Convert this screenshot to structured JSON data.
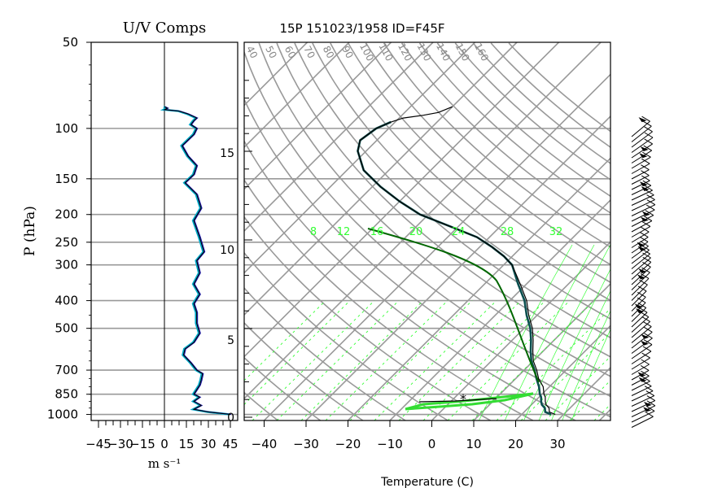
{
  "title": "15P 151023/1958 ID=F45F",
  "colors": {
    "grid": "#999999",
    "temperature": "#000000",
    "dewpoint": "#0b4f4f",
    "mixing_ratio": "#33ff33",
    "u_comp": "#00aacc",
    "v_comp": "#1a1aaa"
  },
  "chart_data": [
    {
      "type": "line",
      "title": "U/V Comps",
      "xlabel": "m s⁻¹",
      "ylabel": "P (hPa)",
      "xlim": [
        -50,
        50
      ],
      "ylim": [
        1050,
        50
      ],
      "y_scale": "log",
      "grid": true,
      "x_ticks": [
        -45,
        -30,
        -15,
        0,
        15,
        30,
        45
      ],
      "x_tick_labels": [
        "−45",
        "−30",
        "−15",
        "0",
        "15",
        "30",
        "45"
      ],
      "y_ticks": [
        50,
        100,
        150,
        200,
        250,
        300,
        400,
        500,
        700,
        850,
        1000
      ],
      "series": [
        {
          "name": "",
          "color": "#000000",
          "points": [
            [
              45,
              1000
            ],
            [
              30,
              980
            ],
            [
              20,
              960
            ],
            [
              25,
              930
            ],
            [
              20,
              900
            ],
            [
              24,
              870
            ],
            [
              20,
              850
            ],
            [
              22,
              820
            ],
            [
              24,
              790
            ],
            [
              25,
              760
            ],
            [
              26,
              720
            ],
            [
              22,
              700
            ],
            [
              18,
              660
            ],
            [
              13,
              620
            ],
            [
              14,
              590
            ],
            [
              20,
              560
            ],
            [
              24,
              520
            ],
            [
              22,
              480
            ],
            [
              22,
              440
            ],
            [
              20,
              410
            ],
            [
              24,
              380
            ],
            [
              20,
              350
            ],
            [
              24,
              320
            ],
            [
              22,
              290
            ],
            [
              27,
              270
            ],
            [
              24,
              240
            ],
            [
              20,
              210
            ],
            [
              25,
              190
            ],
            [
              22,
              170
            ],
            [
              14,
              155
            ],
            [
              20,
              145
            ],
            [
              22,
              135
            ],
            [
              16,
              125
            ],
            [
              12,
              115
            ],
            [
              20,
              105
            ],
            [
              22,
              100
            ],
            [
              18,
              97
            ],
            [
              20,
              94
            ],
            [
              22,
              92
            ],
            [
              16,
              89
            ],
            [
              10,
              87
            ],
            [
              0,
              86
            ],
            [
              2,
              85
            ],
            [
              0,
              84
            ]
          ]
        }
      ]
    },
    {
      "type": "line",
      "title": "15P 151023/1958 ID=F45F",
      "xlabel": "Temperature (C)",
      "xlim": [
        -45,
        40
      ],
      "ylim": [
        1050,
        50
      ],
      "y_scale": "log",
      "grid": true,
      "x_ticks": [
        -40,
        -30,
        -20,
        -10,
        0,
        10,
        20,
        30
      ],
      "x_tick_labels": [
        "−40",
        "−30",
        "−20",
        "−10",
        "0",
        "10",
        "20",
        "30"
      ],
      "height_axis_km": [
        0,
        5,
        10,
        15
      ],
      "mixing_ratio_labels": [
        "8",
        "12",
        "16",
        "20",
        "24",
        "28",
        "32"
      ],
      "series": [
        {
          "name": "",
          "color": "#000000",
          "points": [
            [
              28,
              1000
            ],
            [
              26,
              980
            ],
            [
              25,
              950
            ],
            [
              23.5,
              925
            ],
            [
              22.5,
              900
            ],
            [
              21.5,
              870
            ],
            [
              20.5,
              850
            ],
            [
              18.5,
              800
            ],
            [
              15.5,
              750
            ],
            [
              13,
              700
            ],
            [
              10,
              650
            ],
            [
              7.5,
              600
            ],
            [
              5,
              550
            ],
            [
              2,
              500
            ],
            [
              -2,
              450
            ],
            [
              -6,
              400
            ],
            [
              -11.5,
              350
            ],
            [
              -18,
              300
            ],
            [
              -22,
              280
            ],
            [
              -27,
              260
            ],
            [
              -33,
              240
            ],
            [
              -42,
              220
            ],
            [
              -52,
              200
            ],
            [
              -60,
              180
            ],
            [
              -68,
              160
            ],
            [
              -76,
              140
            ],
            [
              -82,
              120
            ],
            [
              -84,
              110
            ],
            [
              -83,
              100
            ],
            [
              -81,
              95
            ],
            [
              -79,
              92
            ],
            [
              -75,
              90
            ],
            [
              -72,
              88
            ],
            [
              -71,
              86
            ],
            [
              -70,
              84
            ]
          ]
        },
        {
          "name": "",
          "color": "#0b4f4f",
          "points": [
            [
              27,
              1000
            ],
            [
              25,
              980
            ],
            [
              24,
              950
            ],
            [
              22.5,
              925
            ],
            [
              21.5,
              900
            ],
            [
              20.5,
              870
            ],
            [
              19.5,
              850
            ],
            [
              17.5,
              800
            ],
            [
              15,
              750
            ],
            [
              12.5,
              700
            ],
            [
              9.5,
              650
            ],
            [
              7,
              600
            ],
            [
              4.5,
              550
            ],
            [
              1.5,
              500
            ],
            [
              -2.5,
              450
            ],
            [
              -6.5,
              400
            ],
            [
              -12,
              350
            ],
            [
              -18,
              300
            ],
            [
              -22,
              280
            ],
            [
              -27,
              260
            ],
            [
              -33,
              240
            ],
            [
              -42,
              220
            ],
            [
              -52,
              200
            ],
            [
              -60,
              180
            ],
            [
              -68,
              160
            ],
            [
              -76,
              140
            ],
            [
              -82,
              120
            ],
            [
              -84,
              110
            ],
            [
              -83,
              100
            ],
            [
              -81,
              95
            ]
          ]
        }
      ]
    }
  ]
}
